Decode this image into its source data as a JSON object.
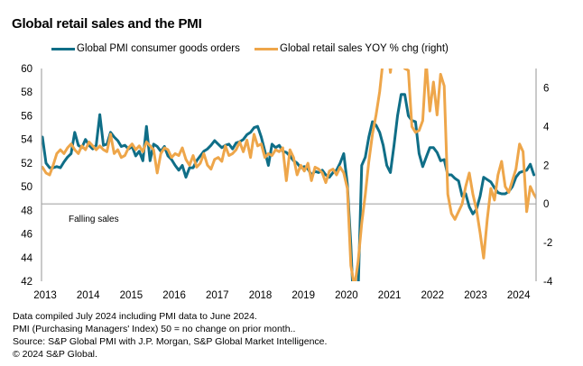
{
  "chart_data": {
    "type": "line",
    "title": "Global retail sales and the PMI",
    "xlabel": "",
    "ylabel": "",
    "x_start": "2013-01",
    "x_tick_labels": [
      "2013",
      "2014",
      "2015",
      "2016",
      "2017",
      "2018",
      "2019",
      "2020",
      "2021",
      "2022",
      "2023",
      "2024"
    ],
    "left_axis": {
      "range": [
        42,
        60
      ],
      "ticks": [
        42,
        44,
        46,
        48,
        50,
        52,
        54,
        56,
        58,
        60
      ]
    },
    "right_axis": {
      "range": [
        -4,
        7
      ],
      "ticks": [
        -4,
        -2,
        0,
        2,
        4,
        6
      ]
    },
    "annotations": [
      {
        "text": "Falling sales"
      }
    ],
    "reference_line": {
      "axis": "right",
      "value": 0
    },
    "legend_position": "top",
    "series": [
      {
        "name": "Global PMI consumer goods orders",
        "axis": "left",
        "color": "#0f6e87",
        "start": "2013-01",
        "values": [
          54.2,
          52.0,
          51.6,
          51.6,
          51.7,
          51.6,
          52.1,
          52.5,
          52.8,
          54.6,
          53.5,
          53.3,
          54.0,
          53.5,
          53.2,
          53.5,
          56.1,
          53.5,
          53.6,
          54.6,
          54.2,
          53.9,
          53.4,
          53.5,
          53.2,
          53.4,
          52.6,
          53.0,
          52.2,
          55.1,
          52.2,
          53.6,
          53.4,
          53.0,
          53.4,
          52.6,
          52.3,
          51.8,
          51.4,
          51.8,
          50.8,
          51.6,
          51.6,
          52.2,
          52.6,
          53.0,
          53.2,
          53.5,
          53.9,
          53.6,
          53.3,
          53.5,
          53.6,
          53.2,
          53.7,
          53.8,
          54.0,
          54.4,
          54.6,
          55.0,
          55.1,
          54.2,
          53.0,
          51.8,
          53.6,
          53.3,
          53.5,
          53.0,
          52.9,
          52.6,
          52.2,
          52.0,
          51.6,
          51.7,
          51.5,
          51.0,
          51.3,
          51.2,
          51.4,
          51.0,
          50.8,
          51.2,
          51.4,
          52.0,
          52.8,
          50.2,
          45.0,
          38.0,
          41.0,
          51.8,
          52.5,
          54.2,
          55.5,
          55.2,
          54.6,
          53.5,
          51.8,
          51.2,
          53.5,
          56.0,
          57.8,
          57.8,
          56.0,
          55.6,
          55.5,
          52.8,
          51.7,
          52.5,
          53.3,
          53.3,
          52.9,
          52.2,
          52.3,
          51.0,
          51.0,
          50.7,
          50.5,
          49.2,
          49.4,
          48.3,
          47.7,
          48.1,
          49.2,
          50.8,
          50.6,
          50.4,
          49.9,
          49.5,
          49.4,
          49.4,
          49.6,
          50.0,
          50.8,
          51.2,
          51.3,
          51.4,
          51.9,
          51.0
        ]
      },
      {
        "name": "Global retail sales YOY % chg (right)",
        "axis": "right",
        "color": "#eea64a",
        "start": "2013-01",
        "values": [
          1.9,
          1.6,
          1.5,
          2.0,
          2.6,
          2.8,
          2.6,
          2.9,
          3.1,
          2.8,
          2.6,
          3.0,
          2.8,
          3.2,
          3.0,
          2.8,
          3.0,
          2.8,
          2.7,
          3.6,
          2.6,
          2.8,
          2.4,
          2.5,
          2.9,
          3.1,
          2.8,
          3.0,
          2.7,
          3.2,
          3.0,
          2.8,
          1.6,
          2.6,
          2.9,
          2.8,
          2.4,
          2.6,
          2.5,
          2.9,
          2.3,
          2.0,
          2.5,
          1.9,
          2.1,
          2.6,
          2.0,
          1.8,
          2.3,
          2.4,
          2.2,
          3.0,
          2.5,
          2.6,
          2.8,
          3.2,
          2.7,
          3.3,
          2.4,
          3.6,
          3.0,
          3.1,
          2.4,
          2.6,
          2.5,
          2.8,
          2.7,
          2.9,
          1.2,
          2.8,
          2.4,
          1.5,
          2.0,
          1.7,
          2.1,
          1.2,
          1.9,
          1.8,
          1.6,
          1.1,
          1.7,
          1.8,
          1.5,
          1.9,
          1.6,
          0.8,
          -3.2,
          -4.3,
          -3.0,
          -1.0,
          0.5,
          2.2,
          3.6,
          4.6,
          5.8,
          7.5,
          8.5,
          6.8,
          8.5,
          11.0,
          7.8,
          7.0,
          6.9,
          4.0,
          3.7,
          3.8,
          4.3,
          7.3,
          4.8,
          6.3,
          4.6,
          6.7,
          6.1,
          0.5,
          -0.5,
          -0.8,
          -0.4,
          0.0,
          0.9,
          1.6,
          0.5,
          -0.3,
          -1.5,
          -2.8,
          -0.8,
          0.8,
          0.2,
          1.5,
          2.2,
          0.9,
          0.6,
          1.2,
          1.8,
          3.1,
          2.7,
          -0.4,
          0.9,
          0.5,
          0.2
        ]
      }
    ]
  },
  "header": {
    "title": "Global retail sales and the PMI"
  },
  "legend": [
    {
      "label": "Global PMI consumer goods orders",
      "color": "#0f6e87"
    },
    {
      "label": "Global retail sales YOY % chg (right)",
      "color": "#eea64a"
    }
  ],
  "annotation": "Falling sales",
  "footnotes": [
    "Data compiled July 2024 including PMI data to June 2024.",
    "PMI (Purchasing Managers' Index) 50 = no change on prior month..",
    "Source: S&P Global PMI with J.P. Morgan, S&P Global Market Intelligence.",
    "© 2024 S&P Global."
  ]
}
